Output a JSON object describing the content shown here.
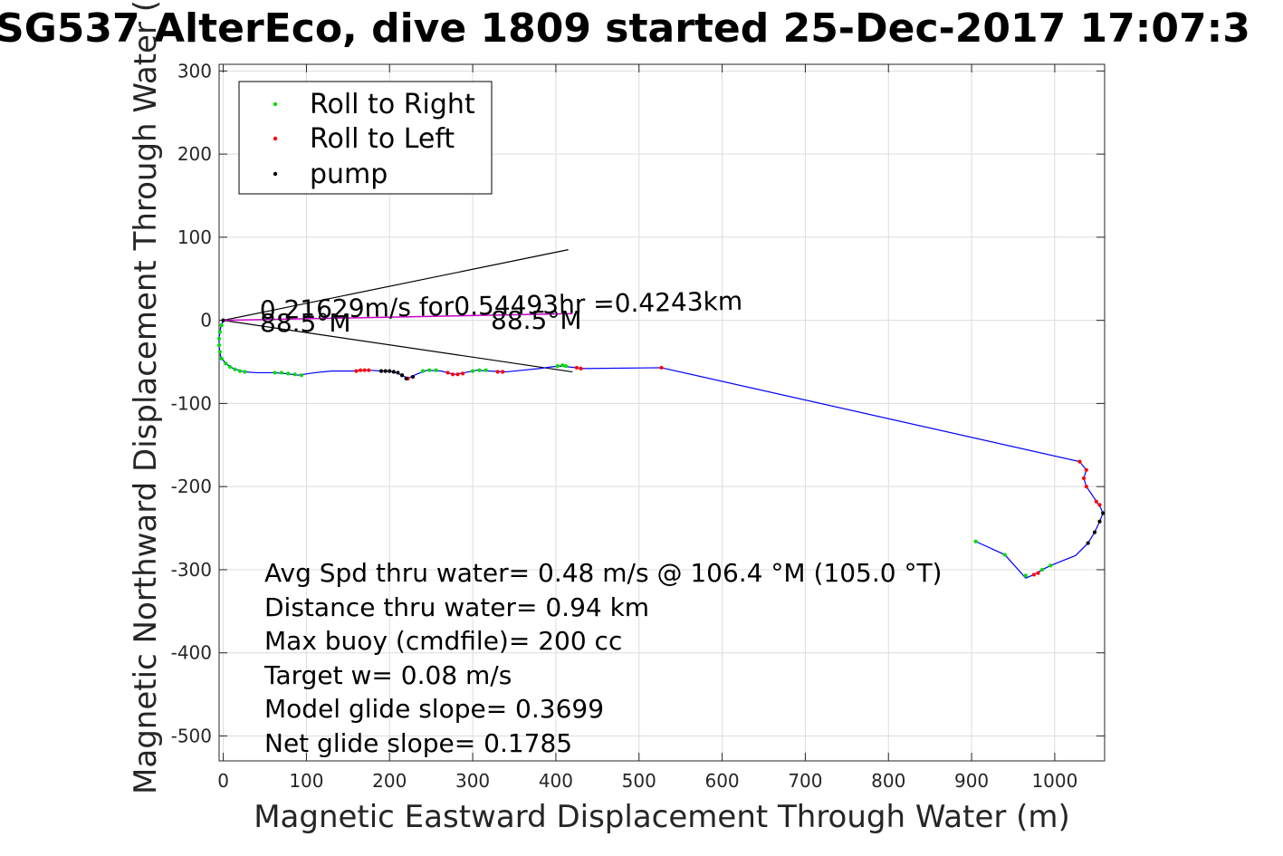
{
  "chart_data": {
    "type": "scatter",
    "title": "SG537 AlterEco, dive 1809 started 25-Dec-2017 17:07:3",
    "xlabel": "Magnetic Eastward Displacement Through Water (m)",
    "ylabel": "Magnetic Northward Displacement Through Water (",
    "xlim": [
      -5,
      1060
    ],
    "ylim": [
      -530,
      308
    ],
    "xticks": [
      0,
      100,
      200,
      300,
      400,
      500,
      600,
      700,
      800,
      900,
      1000
    ],
    "yticks": [
      300,
      200,
      100,
      0,
      -100,
      -200,
      -300,
      -400,
      -500
    ],
    "grid": true,
    "legend_position": "top-left",
    "colors": {
      "track": "#0000ff",
      "right": "#00dd00",
      "left": "#ff0000",
      "pump": "#000000",
      "magenta": "#cc00cc",
      "wedge": "#000000"
    },
    "legend": [
      "Roll to Right",
      "Roll to Left",
      "pump"
    ],
    "track": [
      [
        0,
        0
      ],
      [
        -3,
        -8
      ],
      [
        -5,
        -20
      ],
      [
        -5,
        -32
      ],
      [
        -3,
        -44
      ],
      [
        3,
        -52
      ],
      [
        12,
        -58
      ],
      [
        25,
        -62
      ],
      [
        40,
        -63
      ],
      [
        60,
        -63
      ],
      [
        75,
        -64
      ],
      [
        90,
        -66
      ],
      [
        110,
        -63
      ],
      [
        130,
        -61
      ],
      [
        155,
        -61
      ],
      [
        175,
        -60
      ],
      [
        190,
        -61
      ],
      [
        205,
        -62
      ],
      [
        215,
        -66
      ],
      [
        222,
        -70
      ],
      [
        232,
        -65
      ],
      [
        245,
        -60
      ],
      [
        262,
        -61
      ],
      [
        278,
        -65
      ],
      [
        290,
        -63
      ],
      [
        305,
        -60
      ],
      [
        320,
        -61
      ],
      [
        340,
        -62
      ],
      [
        360,
        -60
      ],
      [
        380,
        -58
      ],
      [
        395,
        -56
      ],
      [
        405,
        -55
      ],
      [
        415,
        -56
      ],
      [
        425,
        -57
      ],
      [
        432,
        -58
      ],
      [
        527,
        -57
      ],
      [
        1030,
        -170
      ],
      [
        1038,
        -180
      ],
      [
        1035,
        -190
      ],
      [
        1038,
        -200
      ],
      [
        1045,
        -210
      ],
      [
        1050,
        -218
      ],
      [
        1055,
        -225
      ],
      [
        1058,
        -232
      ],
      [
        1054,
        -242
      ],
      [
        1048,
        -255
      ],
      [
        1040,
        -268
      ],
      [
        1025,
        -283
      ],
      [
        995,
        -295
      ],
      [
        985,
        -300
      ],
      [
        975,
        -306
      ],
      [
        965,
        -310
      ],
      [
        940,
        -282
      ],
      [
        905,
        -266
      ]
    ],
    "roll_right": [
      [
        -2,
        -6
      ],
      [
        -4,
        -14
      ],
      [
        -5,
        -22
      ],
      [
        -5,
        -30
      ],
      [
        -4,
        -38
      ],
      [
        -2,
        -46
      ],
      [
        3,
        -52
      ],
      [
        8,
        -56
      ],
      [
        14,
        -59
      ],
      [
        20,
        -61
      ],
      [
        26,
        -62
      ],
      [
        62,
        -63
      ],
      [
        70,
        -63
      ],
      [
        78,
        -64
      ],
      [
        86,
        -65
      ],
      [
        94,
        -66
      ],
      [
        240,
        -61
      ],
      [
        248,
        -60
      ],
      [
        256,
        -60
      ],
      [
        300,
        -61
      ],
      [
        308,
        -60
      ],
      [
        316,
        -60
      ],
      [
        402,
        -55
      ],
      [
        408,
        -54
      ],
      [
        412,
        -55
      ],
      [
        965,
        -307
      ],
      [
        940,
        -282
      ],
      [
        905,
        -266
      ],
      [
        995,
        -295
      ],
      [
        985,
        -300
      ]
    ],
    "roll_left": [
      [
        160,
        -61
      ],
      [
        165,
        -60
      ],
      [
        170,
        -60
      ],
      [
        175,
        -60
      ],
      [
        215,
        -66
      ],
      [
        222,
        -70
      ],
      [
        228,
        -68
      ],
      [
        270,
        -63
      ],
      [
        276,
        -65
      ],
      [
        282,
        -65
      ],
      [
        288,
        -64
      ],
      [
        330,
        -62
      ],
      [
        336,
        -62
      ],
      [
        425,
        -57
      ],
      [
        430,
        -58
      ],
      [
        527,
        -57
      ],
      [
        1030,
        -170
      ],
      [
        1038,
        -180
      ],
      [
        1035,
        -190
      ],
      [
        1038,
        -200
      ],
      [
        1050,
        -218
      ],
      [
        1054,
        -222
      ],
      [
        975,
        -306
      ],
      [
        980,
        -304
      ]
    ],
    "pump": [
      [
        0,
        0
      ],
      [
        190,
        -61
      ],
      [
        195,
        -61
      ],
      [
        200,
        -61
      ],
      [
        205,
        -62
      ],
      [
        210,
        -63
      ],
      [
        215,
        -66
      ],
      [
        220,
        -70
      ],
      [
        228,
        -68
      ],
      [
        1058,
        -232
      ],
      [
        1054,
        -242
      ],
      [
        1048,
        -255
      ],
      [
        1040,
        -268
      ]
    ],
    "heading_line": {
      "from": [
        0,
        0
      ],
      "to": [
        420,
        8
      ]
    },
    "wedge": [
      {
        "from": [
          0,
          0
        ],
        "to": [
          415,
          85
        ]
      },
      {
        "from": [
          0,
          0
        ],
        "to": [
          420,
          -62
        ]
      }
    ],
    "annotations": {
      "speed": "0.21629m/s for0.54493hr =0.4243km",
      "heading_start": "88.5°M",
      "heading_end": "88.5°M"
    },
    "stats": [
      "Avg Spd thru water=  0.48 m/s @ 106.4 °M (105.0 °T)",
      "Distance thru water=  0.94 km",
      "Max buoy (cmdfile)= 200 cc",
      "Target w= 0.08 m/s",
      "Model glide slope= 0.3699",
      "Net glide slope= 0.1785"
    ]
  }
}
